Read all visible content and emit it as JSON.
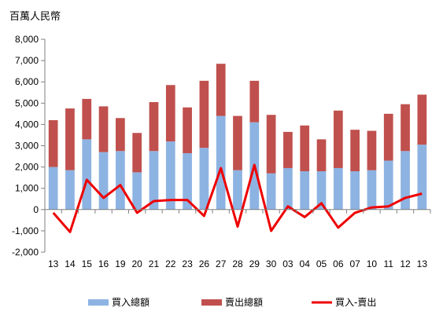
{
  "chart_data": {
    "type": "bar",
    "unit_label": "百萬人民幣",
    "categories": [
      "13",
      "14",
      "15",
      "16",
      "19",
      "20",
      "21",
      "22",
      "23",
      "26",
      "27",
      "28",
      "29",
      "30",
      "03",
      "04",
      "05",
      "06",
      "07",
      "10",
      "11",
      "12",
      "13"
    ],
    "ylim": [
      -2000,
      8000
    ],
    "yticks": [
      "8,000",
      "7,000",
      "6,000",
      "5,000",
      "4,000",
      "3,000",
      "2,000",
      "1,000",
      "0",
      "-1,000",
      "-2,000"
    ],
    "ytick_values": [
      8000,
      7000,
      6000,
      5000,
      4000,
      3000,
      2000,
      1000,
      0,
      -1000,
      -2000
    ],
    "series": [
      {
        "name": "買入總額",
        "type": "stacked-bar",
        "color": "#8db3e2",
        "values": [
          2000,
          1850,
          3300,
          2700,
          2750,
          1750,
          2750,
          3200,
          2650,
          2900,
          4400,
          1850,
          4100,
          1700,
          1950,
          1800,
          1800,
          1950,
          1800,
          1850,
          2300,
          2750,
          3050
        ]
      },
      {
        "name": "賣出總額",
        "type": "stacked-bar",
        "color": "#c0504d",
        "values": [
          2200,
          2900,
          1900,
          2150,
          1550,
          1850,
          2300,
          2650,
          2150,
          3150,
          2450,
          2550,
          1950,
          2750,
          1700,
          2150,
          1500,
          2700,
          1950,
          1850,
          2200,
          2200,
          2350
        ]
      },
      {
        "name": "買入-賣出",
        "type": "line",
        "color": "#ee0000",
        "values": [
          -150,
          -1050,
          1400,
          550,
          1150,
          -150,
          400,
          450,
          450,
          -300,
          1950,
          -800,
          2100,
          -1000,
          150,
          -350,
          300,
          -850,
          -150,
          100,
          150,
          550,
          750
        ]
      }
    ],
    "grid": false,
    "legend": "bottom"
  }
}
